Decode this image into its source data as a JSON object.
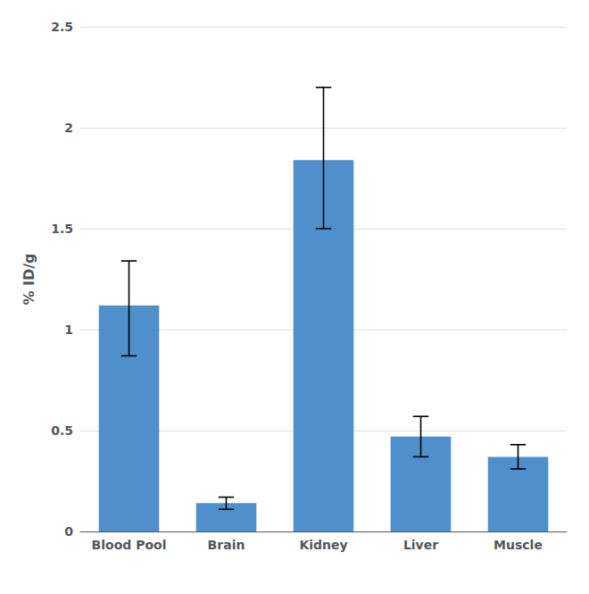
{
  "chart_data": {
    "type": "bar",
    "categories": [
      "Blood Pool",
      "Brain",
      "Kidney",
      "Liver",
      "Muscle"
    ],
    "values": [
      1.12,
      0.14,
      1.84,
      0.47,
      0.37
    ],
    "errors_upper": [
      0.22,
      0.03,
      0.36,
      0.1,
      0.06
    ],
    "errors_lower": [
      0.25,
      0.03,
      0.34,
      0.1,
      0.06
    ],
    "color": "#4F8FCC",
    "ylabel": "% ID/g",
    "ylim": [
      0,
      2.5
    ],
    "yticks": [
      0,
      0.5,
      1,
      1.5,
      2,
      2.5
    ],
    "grid": true
  }
}
